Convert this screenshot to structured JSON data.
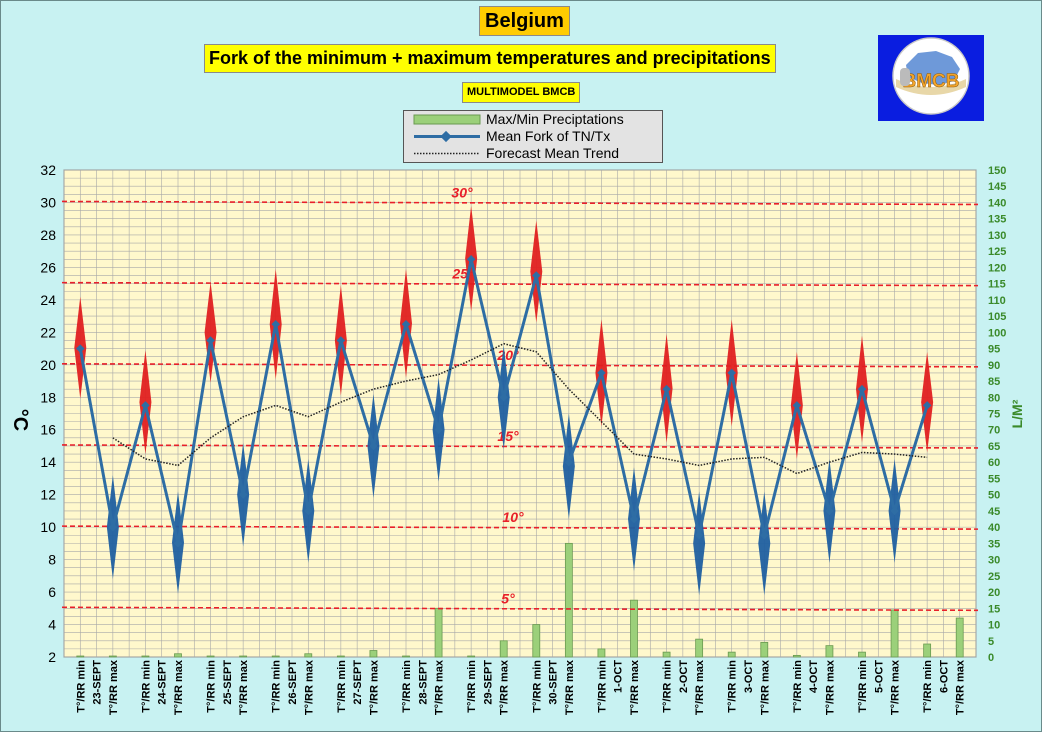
{
  "header": {
    "title": "Belgium",
    "subtitle": "Fork of the minimum + maximum temperatures and precipitations",
    "source": "MULTIMODEL BMCB",
    "logo_text": "BMCB"
  },
  "legend": {
    "items": [
      {
        "label": "Max/Min Preciptations",
        "kind": "bar"
      },
      {
        "label": "Mean Fork of TN/Tx",
        "kind": "line-marker"
      },
      {
        "label": "Forecast Mean Trend",
        "kind": "dotted"
      }
    ]
  },
  "colors": {
    "background": "#c8f2f2",
    "plot_bg": "#fff8cc",
    "grid": "#a8a8a8",
    "mean_line": "#2e6da4",
    "min_marker": "#1f5fa0",
    "max_marker": "#e02020",
    "precip_bar": "#9bd07a",
    "ref_line": "#e8202a",
    "title_bg": "#ffcc00",
    "subtitle_bg": "#ffff00",
    "logo_bg": "#0a1de0",
    "y2_label_color": "#3a8a2a"
  },
  "chart_data": {
    "type": "line",
    "ylabel": "°C",
    "y2label": "L/M²",
    "ylim": [
      2,
      32
    ],
    "yticks": [
      2,
      4,
      6,
      8,
      10,
      12,
      14,
      16,
      18,
      20,
      22,
      24,
      26,
      28,
      30,
      32
    ],
    "y2lim": [
      0,
      150
    ],
    "y2ticks": [
      0,
      5,
      10,
      15,
      20,
      25,
      30,
      35,
      40,
      45,
      50,
      55,
      60,
      65,
      70,
      75,
      80,
      85,
      90,
      95,
      100,
      105,
      110,
      115,
      120,
      125,
      130,
      135,
      140,
      145,
      150
    ],
    "categories": [
      "T°/RR min",
      "T°/RR max",
      "T°/RR min",
      "T°/RR max",
      "T°/RR min",
      "T°/RR max",
      "T°/RR min",
      "T°/RR max",
      "T°/RR min",
      "T°/RR max",
      "T°/RR min",
      "T°/RR max",
      "T°/RR min",
      "T°/RR max",
      "T°/RR min",
      "T°/RR max",
      "T°/RR min",
      "T°/RR max",
      "T°/RR min",
      "T°/RR max",
      "T°/RR min",
      "T°/RR max",
      "T°/RR min",
      "T°/RR max",
      "T°/RR min",
      "T°/RR max",
      "T°/RR min",
      "T°/RR max"
    ],
    "dates": [
      "23-SEPT",
      "24-SEPT",
      "25-SEPT",
      "26-SEPT",
      "27-SEPT",
      "28-SEPT",
      "29-SEPT",
      "30-SEPT",
      "1-OCT",
      "2-OCT",
      "3-OCT",
      "4-OCT",
      "5-OCT",
      "6-OCT"
    ],
    "series": [
      {
        "name": "Mean Fork of TN/Tx",
        "values": [
          21,
          10,
          17.5,
          9,
          21.5,
          12,
          22.5,
          11,
          21.5,
          15,
          22.5,
          16,
          26.5,
          18,
          25.5,
          14,
          19.5,
          10.5,
          18.5,
          9.5,
          19.5,
          9.5,
          17.5,
          11,
          18.5,
          11,
          17.5,
          null
        ]
      },
      {
        "name": "Forecast Mean Trend",
        "values": [
          null,
          15.5,
          14.2,
          13.8,
          15.5,
          16.8,
          17.5,
          16.8,
          17.7,
          18.5,
          19,
          19.4,
          20.3,
          21.3,
          20.8,
          18.5,
          16.5,
          14.5,
          14.2,
          13.8,
          14.2,
          14.3,
          13.3,
          14,
          14.6,
          14.5,
          14.3,
          null
        ]
      },
      {
        "name": "Max/Min Preciptations",
        "axis": "y2",
        "values": [
          0,
          0,
          0,
          1,
          0,
          0,
          0,
          1,
          0,
          2,
          0,
          15,
          0,
          5,
          10,
          35,
          2.5,
          17.5,
          1.5,
          5.5,
          1.5,
          4.5,
          0.5,
          3.5,
          1.5,
          14.5,
          4,
          12
        ]
      }
    ],
    "fork_spans": {
      "min": [
        [
          6.8,
          13.2
        ],
        [
          5.9,
          12.2
        ],
        [
          8.8,
          15.2
        ],
        [
          7.8,
          14.2
        ],
        [
          11.8,
          18.2
        ],
        [
          12.8,
          19.2
        ],
        [
          14.8,
          21.2
        ],
        [
          10.5,
          17
        ],
        [
          7.3,
          13.7
        ],
        [
          5.8,
          12.2
        ],
        [
          5.8,
          12.2
        ],
        [
          7.8,
          14.2
        ],
        [
          7.8,
          14.2
        ]
      ],
      "max": [
        [
          17.9,
          24.2
        ],
        [
          14.5,
          20.9
        ],
        [
          18.9,
          25.1
        ],
        [
          19.1,
          25.9
        ],
        [
          18.1,
          24.9
        ],
        [
          19.2,
          25.9
        ],
        [
          23.3,
          29.8
        ],
        [
          22.6,
          28.9
        ],
        [
          16.2,
          22.8
        ],
        [
          15.2,
          21.9
        ],
        [
          16.2,
          22.8
        ],
        [
          14.2,
          20.8
        ],
        [
          15.2,
          21.8
        ],
        [
          14.6,
          20.8
        ]
      ]
    },
    "reference_lines": [
      {
        "value": 30,
        "label": "30°"
      },
      {
        "value": 25,
        "label": "25°"
      },
      {
        "value": 20,
        "label": "20°"
      },
      {
        "value": 15,
        "label": "15°"
      },
      {
        "value": 10,
        "label": "10°"
      },
      {
        "value": 5,
        "label": "5°"
      }
    ],
    "grid": true,
    "legend_position": "top-center"
  }
}
